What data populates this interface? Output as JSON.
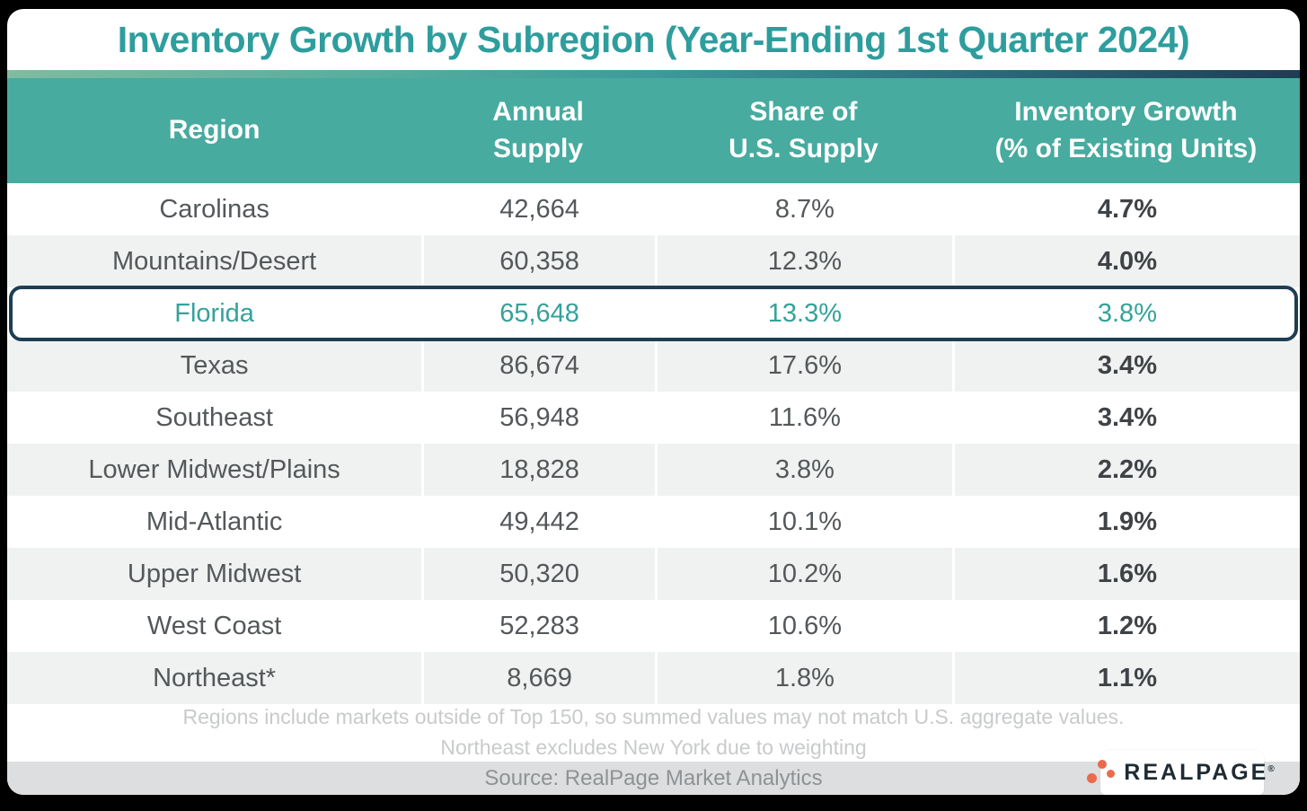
{
  "colors": {
    "accent_teal": "#2E9D9D",
    "header_background": "#47AB9F",
    "highlight_border": "#1E3E54",
    "highlight_text": "#35A29A",
    "row_alt_background": "#F0F1F1",
    "gradient_left": "#7FBCA0",
    "gradient_right": "#1D3D53",
    "logo_orange": "#EA6A4B",
    "source_bar_background": "#DCDEDF"
  },
  "logo": {
    "name": "RealPage",
    "text": "REALPAGE",
    "registered": "®"
  },
  "chart_data": {
    "type": "table",
    "title": "Inventory Growth by Subregion (Year-Ending 1st Quarter 2024)",
    "columns": [
      "Region",
      "Annual Supply",
      "Share of U.S. Supply",
      "Inventory Growth (% of Existing Units)"
    ],
    "column_headers_display": [
      "Region",
      "Annual\nSupply",
      "Share of\nU.S. Supply",
      "Inventory Growth\n(% of Existing Units)"
    ],
    "rows": [
      {
        "region": "Carolinas",
        "annual_supply": "42,664",
        "share_of_us_supply": "8.7%",
        "inventory_growth": "4.7%"
      },
      {
        "region": "Mountains/Desert",
        "annual_supply": "60,358",
        "share_of_us_supply": "12.3%",
        "inventory_growth": "4.0%"
      },
      {
        "region": "Florida",
        "annual_supply": "65,648",
        "share_of_us_supply": "13.3%",
        "inventory_growth": "3.8%"
      },
      {
        "region": "Texas",
        "annual_supply": "86,674",
        "share_of_us_supply": "17.6%",
        "inventory_growth": "3.4%"
      },
      {
        "region": "Southeast",
        "annual_supply": "56,948",
        "share_of_us_supply": "11.6%",
        "inventory_growth": "3.4%"
      },
      {
        "region": "Lower Midwest/Plains",
        "annual_supply": "18,828",
        "share_of_us_supply": "3.8%",
        "inventory_growth": "2.2%"
      },
      {
        "region": "Mid-Atlantic",
        "annual_supply": "49,442",
        "share_of_us_supply": "10.1%",
        "inventory_growth": "1.9%"
      },
      {
        "region": "Upper Midwest",
        "annual_supply": "50,320",
        "share_of_us_supply": "10.2%",
        "inventory_growth": "1.6%"
      },
      {
        "region": "West Coast",
        "annual_supply": "52,283",
        "share_of_us_supply": "10.6%",
        "inventory_growth": "1.2%"
      },
      {
        "region": "Northeast*",
        "annual_supply": "8,669",
        "share_of_us_supply": "1.8%",
        "inventory_growth": "1.1%"
      }
    ],
    "highlighted_row": "Florida",
    "footnotes": [
      "Regions include markets outside of Top 150, so summed values may not match U.S. aggregate values.",
      "Northeast excludes New York due to weighting"
    ],
    "source": "Source: RealPage Market Analytics"
  }
}
